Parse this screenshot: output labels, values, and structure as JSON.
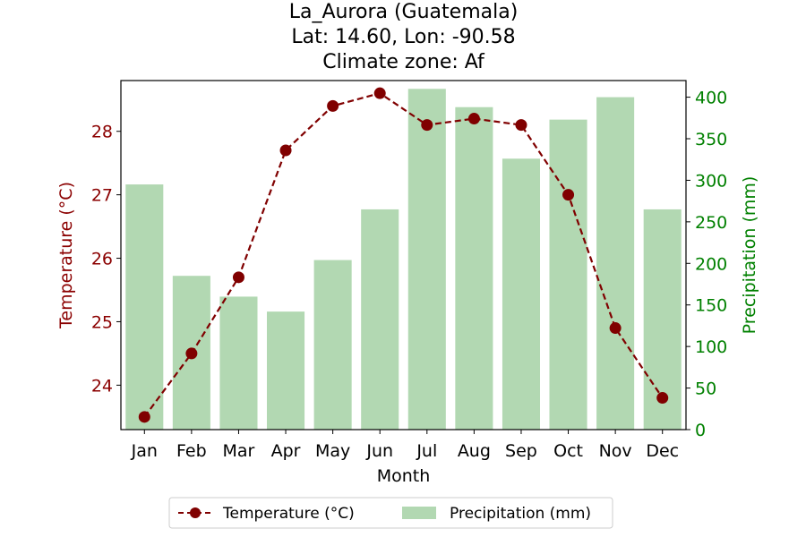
{
  "chart_data": {
    "type": "bar+line",
    "title": [
      "La_Aurora (Guatemala)",
      "Lat: 14.60, Lon: -90.58",
      "Climate zone: Af"
    ],
    "xlabel": "Month",
    "categories": [
      "Jan",
      "Feb",
      "Mar",
      "Apr",
      "May",
      "Jun",
      "Jul",
      "Aug",
      "Sep",
      "Oct",
      "Nov",
      "Dec"
    ],
    "y_left": {
      "label": "Temperature (°C)",
      "lim": [
        23.3,
        28.8
      ],
      "ticks": [
        24,
        25,
        26,
        27,
        28
      ]
    },
    "y_right": {
      "label": "Precipitation (mm)",
      "lim": [
        0,
        420
      ],
      "ticks": [
        0,
        50,
        100,
        150,
        200,
        250,
        300,
        350,
        400
      ]
    },
    "series": [
      {
        "name": "Temperature (°C)",
        "kind": "line",
        "axis": "left",
        "values": [
          23.5,
          24.5,
          25.7,
          27.7,
          28.4,
          28.6,
          28.1,
          28.2,
          28.1,
          27.0,
          24.9,
          23.8
        ]
      },
      {
        "name": "Precipitation (mm)",
        "kind": "bar",
        "axis": "right",
        "values": [
          295,
          185,
          160,
          142,
          204,
          265,
          410,
          388,
          326,
          373,
          400,
          265
        ]
      }
    ],
    "colors": {
      "temperature": "#800000",
      "temperature_axis": "#8b0000",
      "precipitation_bar": "#b2d8b2",
      "precipitation_axis": "#008000"
    },
    "legend": {
      "placement": "bottom-center",
      "entries": [
        "Temperature (°C)",
        "Precipitation (mm)"
      ]
    },
    "grid": false
  }
}
